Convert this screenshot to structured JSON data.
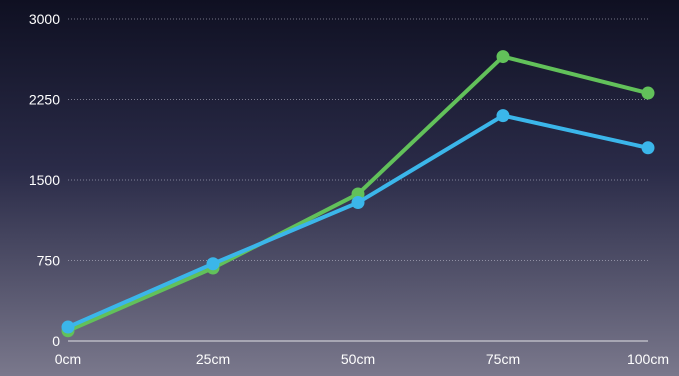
{
  "chart_data": {
    "type": "line",
    "title": "",
    "xlabel": "",
    "ylabel": "",
    "categories": [
      "0cm",
      "25cm",
      "50cm",
      "75cm",
      "100cm"
    ],
    "yticks": [
      0,
      750,
      1500,
      2250,
      3000
    ],
    "ylim": [
      0,
      3000
    ],
    "grid": true,
    "legend": "none",
    "series": [
      {
        "color": "#62c15a",
        "values": [
          95,
          680,
          1370,
          2650,
          2310
        ]
      },
      {
        "color": "#3bb6ea",
        "values": [
          130,
          720,
          1290,
          2100,
          1800
        ]
      }
    ]
  },
  "colors": {
    "background_top": "#0f1022",
    "background_mid": "#2a2b48",
    "background_bottom": "#7a788c",
    "grid": "#c8c8d8",
    "text": "#ffffff"
  }
}
